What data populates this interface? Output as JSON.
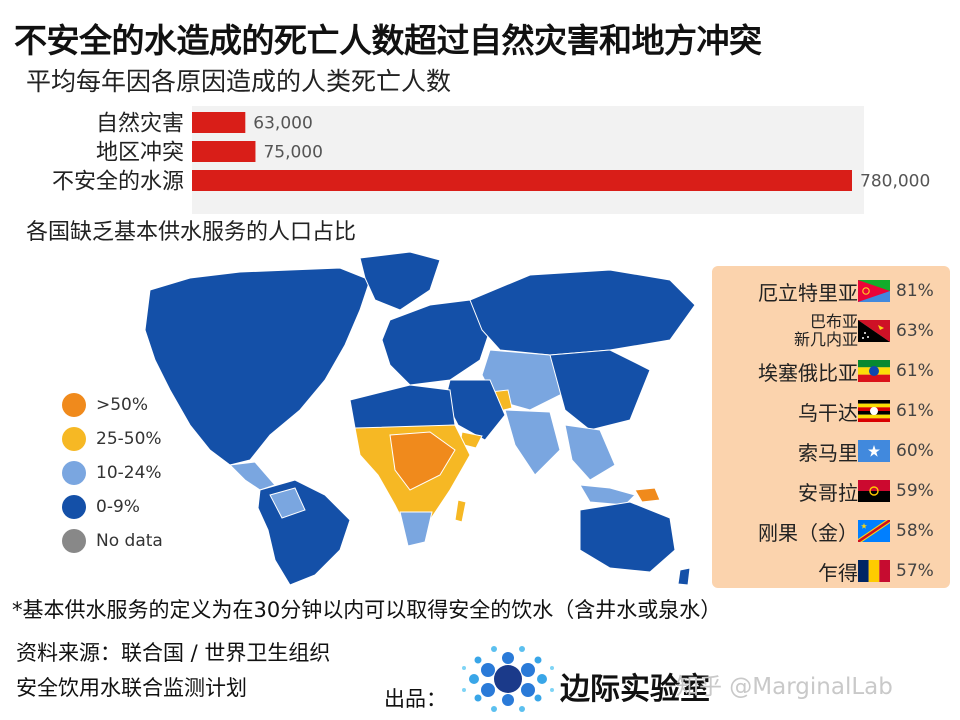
{
  "header": {
    "title": "不安全的水造成的死亡人数超过自然灾害和地方冲突",
    "subtitle": "平均每年因各原因造成的人类死亡人数"
  },
  "chart_data": [
    {
      "type": "bar",
      "orientation": "horizontal",
      "title": "",
      "categories": [
        "自然灾害",
        "地区冲突",
        "不安全的水源"
      ],
      "values": [
        63000,
        75000,
        780000
      ],
      "value_labels": [
        "63,000",
        "75,000",
        "780,000"
      ],
      "bar_color": "#d91e18",
      "xlim": [
        0,
        780000
      ]
    },
    {
      "type": "choropleth-map",
      "title": "各国缺乏基本供水服务的人口占比",
      "legend": [
        {
          "label": ">50%",
          "color": "#f08a1c"
        },
        {
          "label": "25-50%",
          "color": "#f6b824"
        },
        {
          "label": "10-24%",
          "color": "#7aa6e0"
        },
        {
          "label": "0-9%",
          "color": "#1450a8"
        },
        {
          "label": "No data",
          "color": "#888888"
        }
      ],
      "legend_position": "left"
    },
    {
      "type": "table",
      "rows": [
        {
          "name": "厄立特里亚",
          "value": "81%",
          "flag": "eritrea-flag-icon"
        },
        {
          "name": "巴布亚\n新几内亚",
          "value": "63%",
          "flag": "papua-new-guinea-flag-icon"
        },
        {
          "name": "埃塞俄比亚",
          "value": "61%",
          "flag": "ethiopia-flag-icon"
        },
        {
          "name": "乌干达",
          "value": "61%",
          "flag": "uganda-flag-icon"
        },
        {
          "name": "索马里",
          "value": "60%",
          "flag": "somalia-flag-icon"
        },
        {
          "name": "安哥拉",
          "value": "59%",
          "flag": "angola-flag-icon"
        },
        {
          "name": "刚果（金）",
          "value": "58%",
          "flag": "dr-congo-flag-icon"
        },
        {
          "name": "乍得",
          "value": "57%",
          "flag": "chad-flag-icon"
        }
      ],
      "panel_color": "#fbd3ad"
    }
  ],
  "footer": {
    "footnote": "*基本供水服务的定义为在30分钟以内可以取得安全的饮水（含井水或泉水）",
    "source_line1": "资料来源：联合国 / 世界卫生组织",
    "source_line2": "安全饮用水联合监测计划",
    "producer_label": "出品：",
    "lab_name": "边际实验室",
    "watermark": "知乎 @MarginalLab"
  }
}
